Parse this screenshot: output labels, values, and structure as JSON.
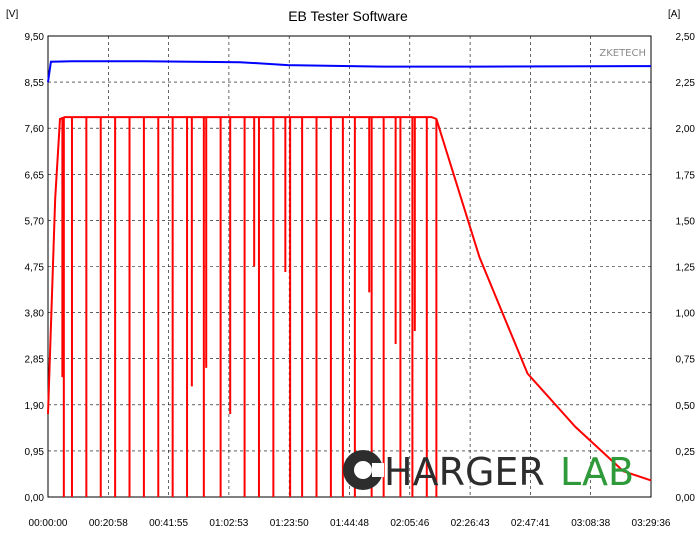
{
  "chart_data": {
    "type": "line",
    "title": "EB Tester Software",
    "watermark": "ZKETECH",
    "left_axis_unit": "[V]",
    "right_axis_unit": "[A]",
    "y_left_ticks": [
      "9,50",
      "8,55",
      "7,60",
      "6,65",
      "5,70",
      "4,75",
      "3,80",
      "2,85",
      "1,90",
      "0,95",
      "0,00"
    ],
    "y_right_ticks": [
      "2,50",
      "2,25",
      "2,00",
      "1,75",
      "1,50",
      "1,25",
      "1,00",
      "0,75",
      "0,50",
      "0,25",
      "0,00"
    ],
    "x_ticks": [
      "00:00:00",
      "00:20:58",
      "00:41:55",
      "01:02:53",
      "01:23:50",
      "01:44:48",
      "02:05:46",
      "02:26:43",
      "02:47:41",
      "03:08:38",
      "03:29:36"
    ],
    "ylim_left": [
      0,
      9.5
    ],
    "ylim_right": [
      0,
      2.5
    ],
    "x_range_seconds": [
      0,
      12576
    ],
    "series": [
      {
        "axis": "left",
        "color": "#0000ff",
        "points": [
          [
            0,
            8.55
          ],
          [
            60,
            8.97
          ],
          [
            500,
            8.98
          ],
          [
            2000,
            8.98
          ],
          [
            3000,
            8.97
          ],
          [
            4000,
            8.96
          ],
          [
            5000,
            8.9
          ],
          [
            7000,
            8.87
          ],
          [
            9000,
            8.87
          ],
          [
            12576,
            8.88
          ]
        ]
      },
      {
        "axis": "right",
        "color": "#ff0000",
        "points": [
          [
            0,
            0.45
          ],
          [
            150,
            1.62
          ],
          [
            250,
            2.05
          ],
          [
            350,
            2.06
          ],
          [
            5000,
            2.06
          ],
          [
            8000,
            2.06
          ],
          [
            8100,
            2.05
          ],
          [
            9000,
            1.3
          ],
          [
            10000,
            0.67
          ],
          [
            11000,
            0.38
          ],
          [
            12000,
            0.14
          ],
          [
            12576,
            0.09
          ]
        ],
        "dropouts": [
          [
            300,
            0.65
          ],
          [
            330,
            0.0
          ],
          [
            500,
            0.0
          ],
          [
            800,
            0.0
          ],
          [
            1100,
            0.0
          ],
          [
            1400,
            0.0
          ],
          [
            1700,
            0.0
          ],
          [
            2000,
            0.0
          ],
          [
            2300,
            0.0
          ],
          [
            2600,
            0.0
          ],
          [
            2900,
            0.0
          ],
          [
            3000,
            0.6
          ],
          [
            3250,
            0.0
          ],
          [
            3300,
            0.7
          ],
          [
            3600,
            0.0
          ],
          [
            3800,
            0.45
          ],
          [
            4100,
            0.0
          ],
          [
            4300,
            1.25
          ],
          [
            4400,
            0.0
          ],
          [
            4700,
            0.0
          ],
          [
            4950,
            1.22
          ],
          [
            5050,
            0.0
          ],
          [
            5300,
            0.0
          ],
          [
            5600,
            0.0
          ],
          [
            5900,
            0.0
          ],
          [
            6150,
            0.0
          ],
          [
            6400,
            0.0
          ],
          [
            6700,
            1.11
          ],
          [
            6750,
            0.0
          ],
          [
            7000,
            0.0
          ],
          [
            7250,
            0.83
          ],
          [
            7350,
            0.0
          ],
          [
            7600,
            0.0
          ],
          [
            7650,
            0.9
          ],
          [
            7900,
            0.0
          ],
          [
            8100,
            0.0
          ]
        ]
      }
    ]
  },
  "logo": {
    "part1": "HARGER",
    "part2": "LAB",
    "colors": {
      "dark": "#2d2d2d",
      "green": "#2e9a3a"
    }
  }
}
